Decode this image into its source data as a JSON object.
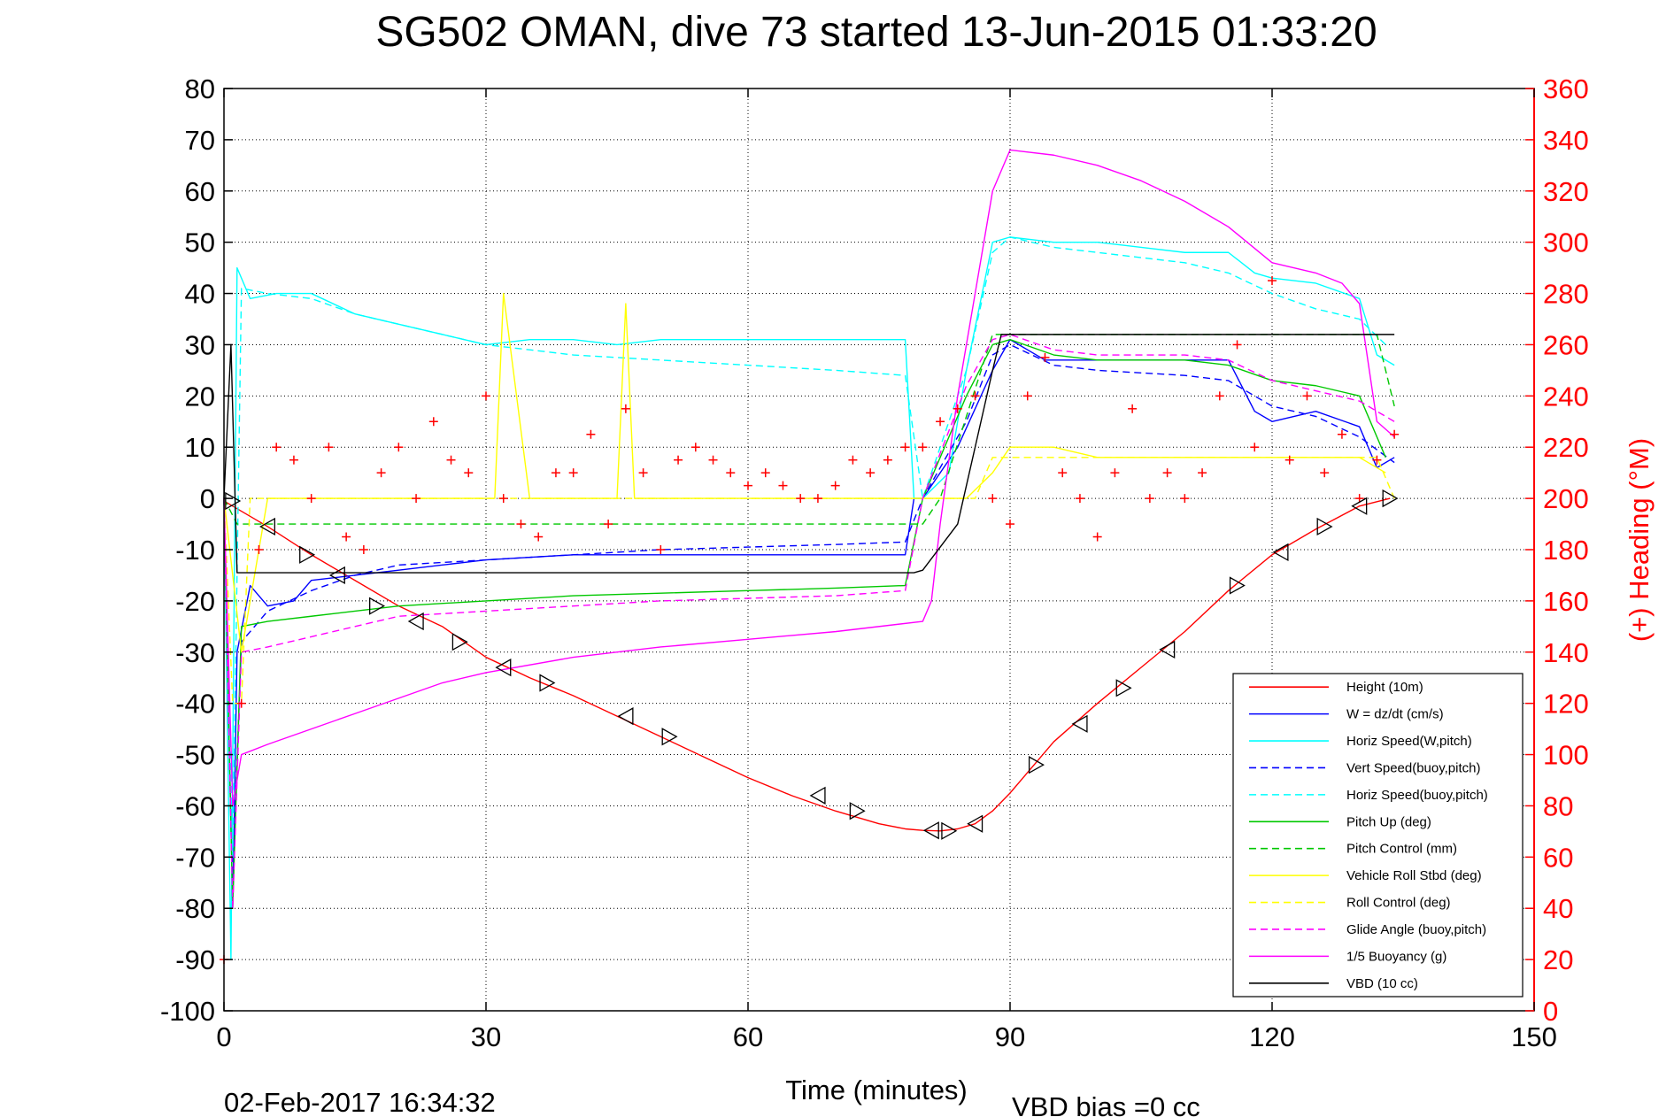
{
  "title": "SG502 OMAN, dive 73 started 13-Jun-2015 01:33:20",
  "footer_left": "02-Feb-2017 16:34:32",
  "footer_right": "VBD bias =0 cc",
  "chart_data": {
    "type": "line",
    "title": "SG502 OMAN, dive 73 started 13-Jun-2015 01:33:20",
    "xlabel": "Time (minutes)",
    "ylabel": "",
    "y2label": "(+) Heading (°M)",
    "xlim": [
      0,
      150
    ],
    "ylim": [
      -100,
      80
    ],
    "y2lim": [
      0,
      360
    ],
    "xticks": [
      0,
      30,
      60,
      90,
      120,
      150
    ],
    "yticks": [
      80,
      70,
      60,
      50,
      40,
      30,
      20,
      10,
      0,
      -10,
      -20,
      -30,
      -40,
      -50,
      -60,
      -70,
      -80,
      -90,
      -100
    ],
    "y2ticks": [
      360,
      340,
      320,
      300,
      280,
      260,
      240,
      220,
      200,
      180,
      160,
      140,
      120,
      100,
      80,
      60,
      40,
      20,
      0
    ],
    "grid": true,
    "legend_position": "lower-right",
    "series": [
      {
        "name": "Height (10m)",
        "color": "#ff0000",
        "dash": "solid",
        "x": [
          0,
          1,
          5,
          10,
          15,
          20,
          25,
          30,
          35,
          40,
          45,
          50,
          55,
          60,
          65,
          70,
          75,
          78,
          80,
          82,
          84,
          86,
          88,
          90,
          95,
          100,
          105,
          110,
          115,
          120,
          125,
          130,
          133.5
        ],
        "y": [
          -0.5,
          -1.5,
          -5.5,
          -11,
          -16,
          -21,
          -25,
          -31,
          -35,
          -38.5,
          -42.5,
          -46.5,
          -50.5,
          -54.5,
          -58,
          -61,
          -63.5,
          -64.5,
          -64.8,
          -64.9,
          -64.5,
          -63.5,
          -61,
          -57.5,
          -47.5,
          -40,
          -33,
          -26,
          -18,
          -11,
          -6,
          -1.5,
          0
        ]
      },
      {
        "name": "W = dz/dt (cm/s)",
        "color": "#0000ff",
        "dash": "solid",
        "x": [
          0,
          1,
          1.5,
          3,
          5,
          8,
          10,
          15,
          20,
          25,
          30,
          40,
          50,
          60,
          70,
          78,
          79,
          80,
          84,
          88,
          90,
          94,
          100,
          105,
          110,
          115,
          118,
          120,
          125,
          130,
          132,
          134
        ],
        "y": [
          0,
          -80,
          -30,
          -17,
          -21,
          -20,
          -16,
          -15,
          -14,
          -13,
          -12,
          -11,
          -11,
          -11,
          -11,
          -11,
          0,
          0,
          10,
          25,
          31,
          27,
          27,
          27,
          27,
          27,
          17,
          15,
          17,
          14,
          6,
          8
        ]
      },
      {
        "name": "Horiz Speed(W,pitch)",
        "color": "#00ffff",
        "dash": "solid",
        "x": [
          0,
          0.8,
          1.5,
          3,
          6,
          10,
          15,
          20,
          25,
          30,
          35,
          40,
          45,
          50,
          55,
          60,
          70,
          78,
          79,
          80,
          83,
          85,
          88,
          90,
          95,
          100,
          105,
          110,
          115,
          118,
          120,
          125,
          130,
          132,
          134
        ],
        "y": [
          0,
          -90,
          45,
          39,
          40,
          40,
          36,
          34,
          32,
          30,
          31,
          31,
          30,
          31,
          31,
          31,
          31,
          31,
          0,
          0,
          5,
          25,
          50,
          51,
          50,
          50,
          49,
          48,
          48,
          44,
          43,
          42,
          39,
          28,
          26
        ]
      },
      {
        "name": "Vert Speed(buoy,pitch)",
        "color": "#0000ff",
        "dash": "dashed",
        "x": [
          0,
          1,
          2,
          5,
          10,
          15,
          20,
          30,
          40,
          50,
          60,
          70,
          78,
          80,
          85,
          88,
          90,
          95,
          100,
          110,
          115,
          120,
          125,
          130,
          134
        ],
        "y": [
          0,
          -75,
          -28,
          -22,
          -18,
          -15,
          -13,
          -12,
          -11,
          -10,
          -9.5,
          -9,
          -8.5,
          0,
          15,
          28,
          30,
          26,
          25,
          24,
          23,
          18,
          16,
          12,
          7
        ]
      },
      {
        "name": "Horiz Speed(buoy,pitch)",
        "color": "#00ffff",
        "dash": "dashed",
        "x": [
          0,
          1,
          2,
          5,
          10,
          15,
          20,
          30,
          40,
          50,
          60,
          70,
          78,
          80,
          85,
          88,
          90,
          95,
          100,
          110,
          115,
          120,
          125,
          130,
          133
        ],
        "y": [
          0,
          -70,
          41,
          40,
          39,
          36,
          34,
          30,
          28,
          27,
          26,
          25,
          24,
          0,
          25,
          48,
          51,
          49,
          48,
          46,
          44,
          40,
          37,
          35,
          30
        ]
      },
      {
        "name": "Pitch Up (deg)",
        "color": "#00c800",
        "dash": "solid",
        "x": [
          0,
          1,
          2,
          5,
          10,
          15,
          20,
          30,
          40,
          50,
          60,
          70,
          78,
          80,
          85,
          88,
          90,
          95,
          100,
          110,
          115,
          120,
          125,
          130,
          133
        ],
        "y": [
          0,
          -80,
          -25,
          -24,
          -23,
          -22,
          -21,
          -20,
          -19,
          -18.5,
          -18,
          -17.5,
          -17,
          0,
          20,
          30,
          31,
          28,
          27,
          27,
          26,
          23,
          22,
          20,
          8
        ]
      },
      {
        "name": "Pitch Control (mm)",
        "color": "#00c800",
        "dash": "dashed",
        "x": [
          0,
          1.5,
          80,
          82,
          88,
          132,
          134
        ],
        "y": [
          0,
          -5,
          -5,
          0,
          32,
          32,
          18
        ]
      },
      {
        "name": "Vehicle Roll Stbd (deg)",
        "color": "#ffff00",
        "dash": "solid",
        "x": [
          0,
          2,
          5,
          10,
          20,
          30,
          31,
          32,
          35,
          40,
          45,
          46,
          47,
          50,
          55,
          60,
          70,
          80,
          85,
          88,
          90,
          95,
          100,
          110,
          120,
          130,
          133
        ],
        "y": [
          0,
          -30,
          0,
          0,
          0,
          0,
          0,
          40,
          0,
          0,
          0,
          38,
          0,
          0,
          0,
          0,
          0,
          0,
          0,
          5,
          10,
          10,
          8,
          8,
          8,
          8,
          5
        ]
      },
      {
        "name": "Roll Control (deg)",
        "color": "#ffff00",
        "dash": "dashed",
        "x": [
          0,
          1,
          2,
          3,
          5,
          20,
          40,
          60,
          80,
          86,
          88,
          90,
          100,
          120,
          132,
          134
        ],
        "y": [
          0,
          -40,
          -40,
          0,
          0,
          0,
          0,
          0,
          0,
          0,
          8,
          8,
          8,
          8,
          8,
          0
        ]
      },
      {
        "name": "Glide Angle (buoy,pitch)",
        "color": "#ff00ff",
        "dash": "dashed",
        "x": [
          0,
          1,
          2,
          5,
          10,
          15,
          20,
          30,
          40,
          50,
          60,
          70,
          78,
          80,
          85,
          88,
          90,
          95,
          100,
          110,
          115,
          120,
          125,
          130,
          134
        ],
        "y": [
          0,
          -80,
          -30,
          -29,
          -27,
          -25,
          -23,
          -22,
          -21,
          -20,
          -19.5,
          -19,
          -18,
          0,
          22,
          31,
          32,
          29,
          28,
          28,
          27,
          23,
          21,
          19,
          15
        ]
      },
      {
        "name": "1/5 Buoyancy (g)",
        "color": "#ff00ff",
        "dash": "solid",
        "x": [
          0,
          1,
          2,
          5,
          10,
          15,
          20,
          25,
          30,
          40,
          50,
          60,
          70,
          80,
          81,
          82,
          84,
          86,
          88,
          90,
          95,
          100,
          105,
          110,
          115,
          120,
          125,
          128,
          130,
          132,
          134
        ],
        "y": [
          0,
          -60,
          -50,
          -48,
          -45,
          -42,
          -39,
          -36,
          -34,
          -31,
          -29,
          -27.5,
          -26,
          -24,
          -20,
          -5,
          20,
          40,
          60,
          68,
          67,
          65,
          62,
          58,
          53,
          46,
          44,
          42,
          38,
          15,
          12
        ]
      },
      {
        "name": "VBD (10 cc)",
        "color": "#000000",
        "dash": "solid",
        "x": [
          0,
          0.8,
          1.5,
          78.5,
          79,
          80,
          84,
          86,
          88,
          89,
          90,
          134
        ],
        "y": [
          0,
          30,
          -14.5,
          -14.5,
          -14.5,
          -14,
          -5,
          10,
          25,
          32,
          32,
          32
        ]
      }
    ],
    "heading_right_axis": {
      "name": "Heading",
      "marker": "+",
      "color": "#ff0000",
      "x": [
        0,
        2,
        4,
        6,
        8,
        10,
        12,
        14,
        16,
        18,
        20,
        22,
        24,
        26,
        28,
        30,
        32,
        34,
        36,
        38,
        40,
        42,
        44,
        46,
        48,
        50,
        52,
        54,
        56,
        58,
        60,
        62,
        64,
        66,
        68,
        70,
        72,
        74,
        76,
        78,
        80,
        82,
        84,
        86,
        88,
        90,
        92,
        94,
        96,
        98,
        100,
        102,
        104,
        106,
        108,
        110,
        112,
        114,
        116,
        118,
        120,
        122,
        124,
        126,
        128,
        130,
        132,
        134
      ],
      "y": [
        20,
        120,
        180,
        220,
        215,
        200,
        220,
        185,
        180,
        210,
        220,
        200,
        230,
        215,
        210,
        240,
        200,
        190,
        185,
        210,
        210,
        225,
        190,
        235,
        210,
        180,
        215,
        220,
        215,
        210,
        205,
        210,
        205,
        200,
        200,
        205,
        215,
        210,
        215,
        220,
        220,
        230,
        235,
        240,
        200,
        190,
        240,
        255,
        210,
        200,
        185,
        210,
        235,
        200,
        210,
        200,
        210,
        240,
        260,
        220,
        285,
        215,
        240,
        210,
        225,
        200,
        215,
        225
      ]
    },
    "height_markers": {
      "x": [
        1,
        5,
        9.5,
        13,
        17.5,
        22,
        27,
        32,
        37,
        46,
        51,
        68,
        72.5,
        81,
        83,
        86,
        93,
        98,
        103,
        108,
        116,
        121,
        126,
        130,
        133.5
      ],
      "y": [
        -0.5,
        -5.5,
        -11,
        -15,
        -21,
        -24,
        -28,
        -33,
        -36,
        -42.5,
        -46.5,
        -58,
        -61,
        -64.8,
        -64.9,
        -63.5,
        -52,
        -44,
        -37,
        -29.5,
        -17,
        -10.5,
        -5.5,
        -1.5,
        0
      ]
    }
  }
}
